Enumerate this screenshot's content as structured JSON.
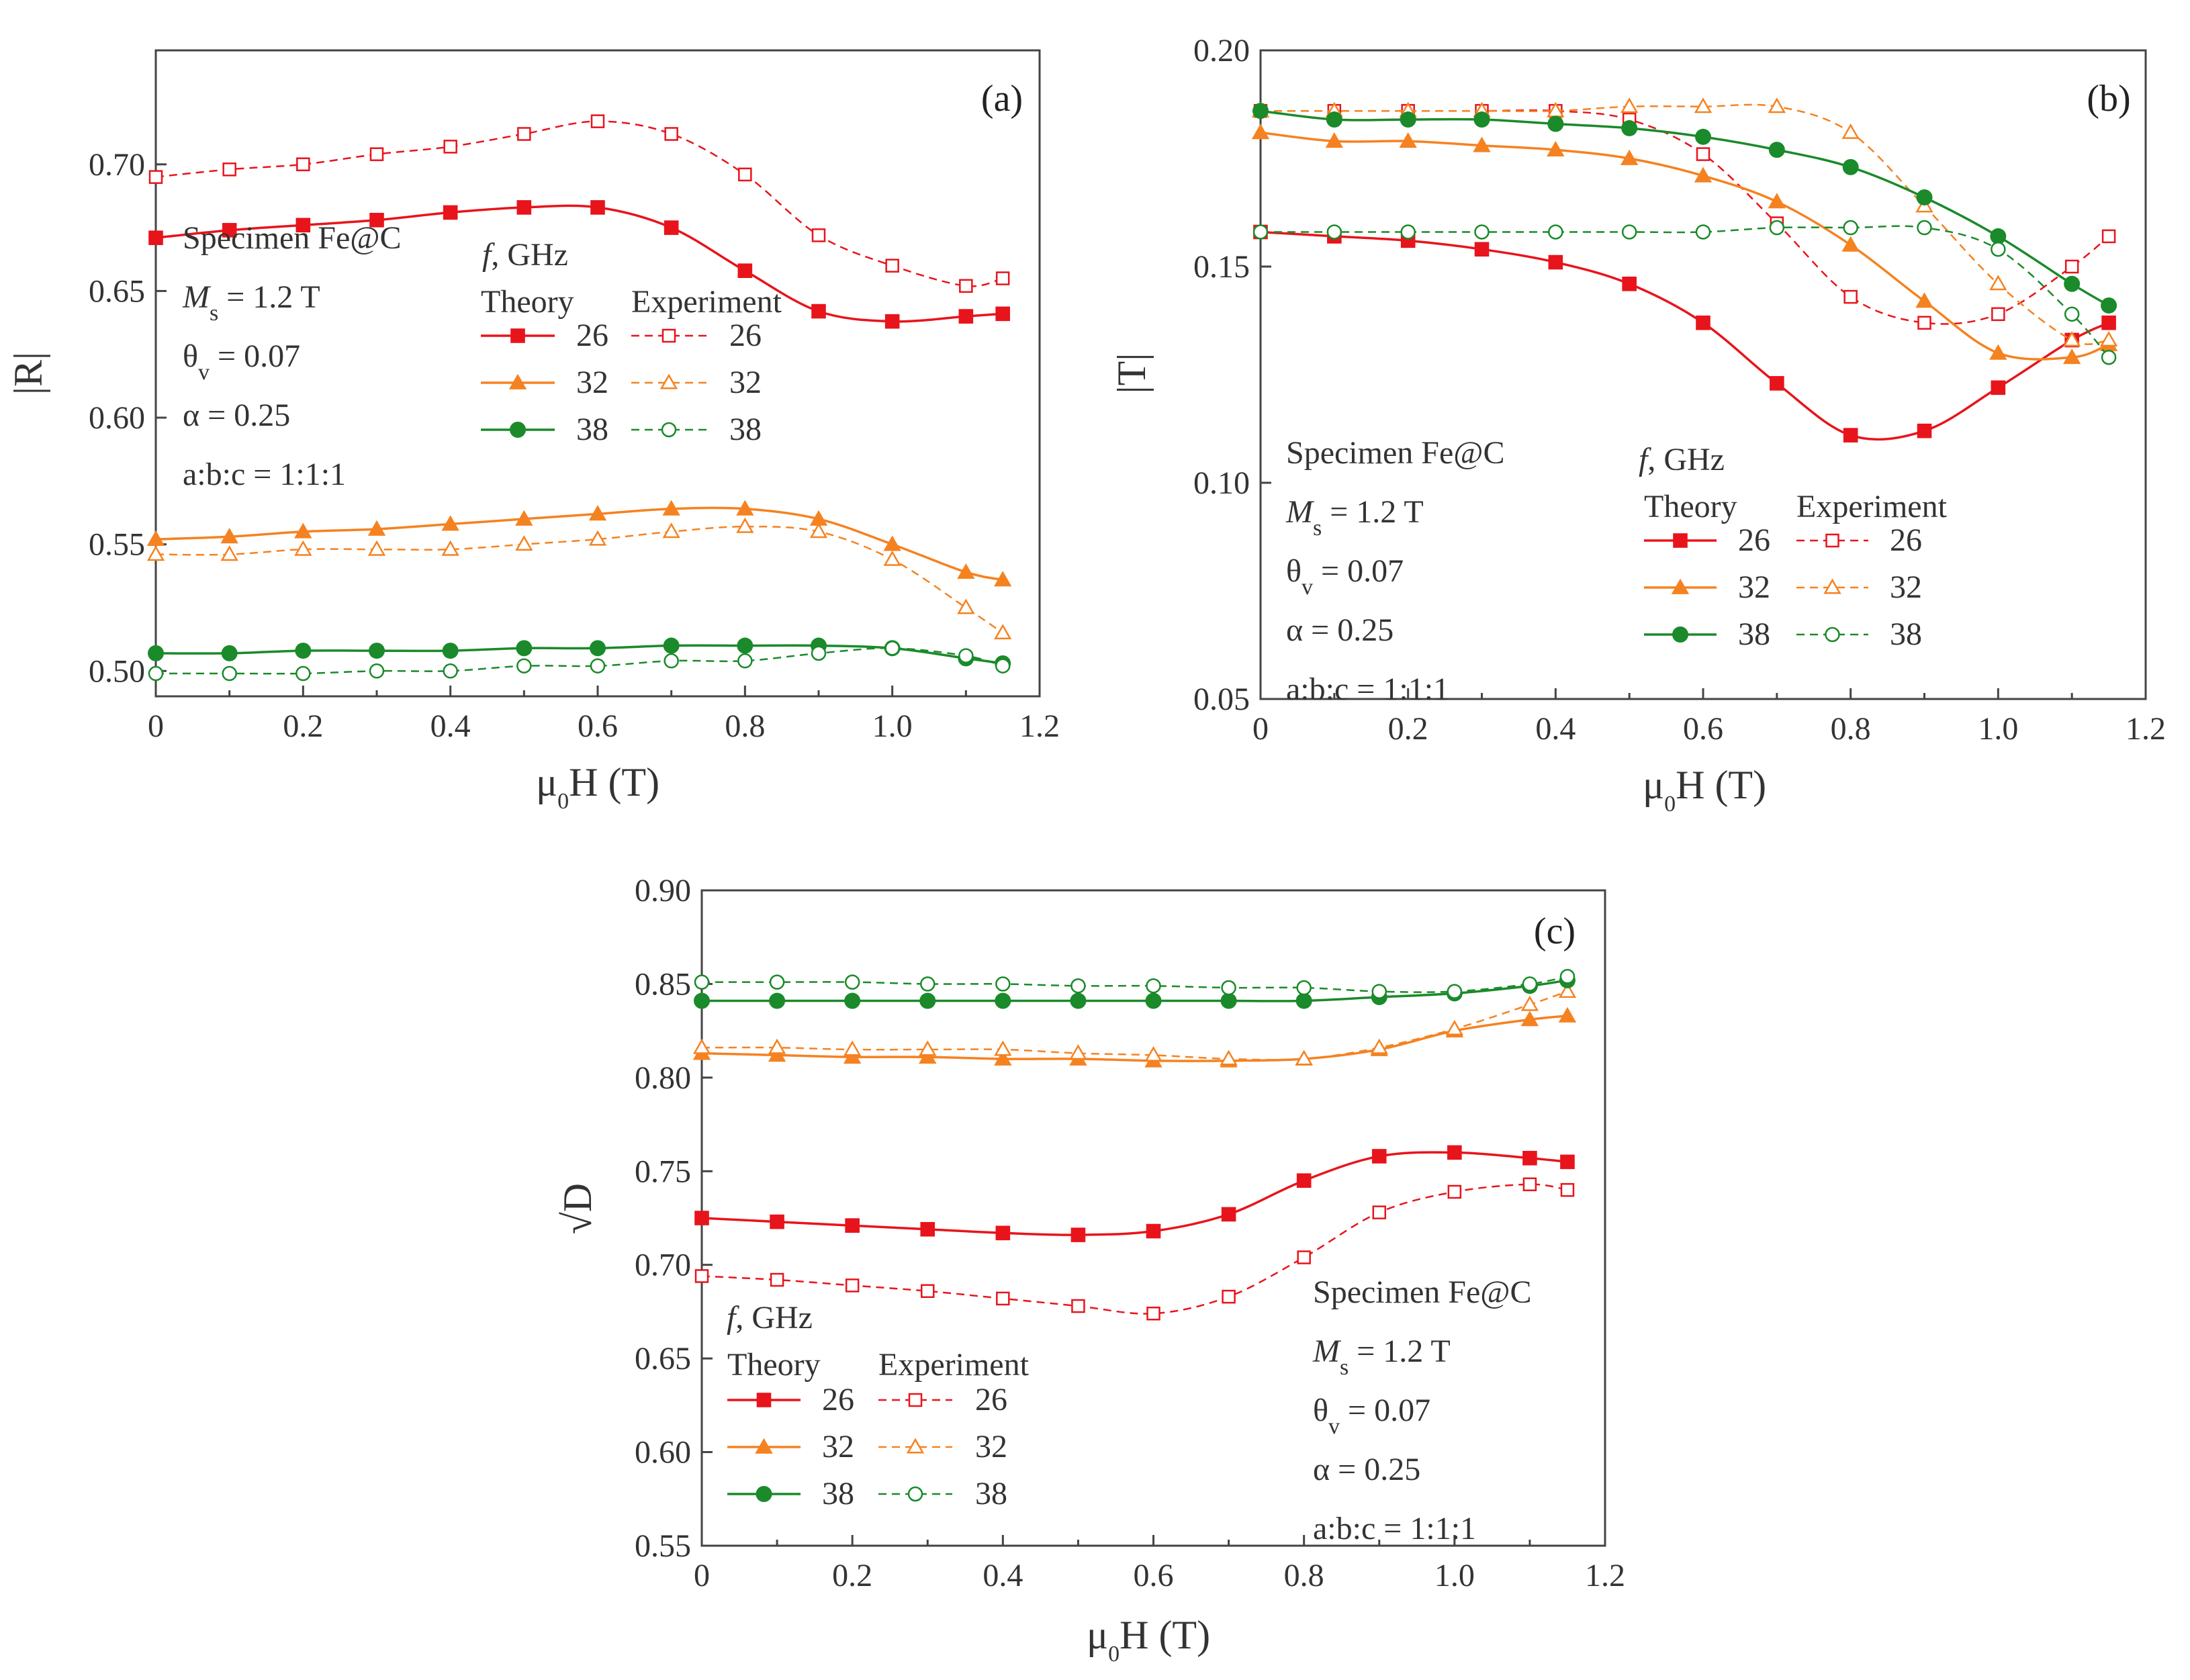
{
  "colors": {
    "red": "#e8141b",
    "orange": "#f58220",
    "green": "#1a8a2a"
  },
  "legend": {
    "title": "f, GHz",
    "theory_label": "Theory",
    "experiment_label": "Experiment",
    "entries": [
      "26",
      "32",
      "38"
    ]
  },
  "specimen_info": {
    "line1": "Specimen Fe@C",
    "line2_sym": "M",
    "line2_sub": "s",
    "line2_rest": " = 1.2 T",
    "line3_sym": "θ",
    "line3_sub": "v",
    "line3_rest": " = 0.07",
    "line4": "α = 0.25",
    "line5": "a:b:c = 1:1:1"
  },
  "chart_data": [
    {
      "id": "a",
      "type": "line",
      "panel_label": "(a)",
      "xlabel_main": "μ",
      "xlabel_sub": "0",
      "xlabel_rest": "H (T)",
      "ylabel": "|R|",
      "xlim": [
        0,
        1.2
      ],
      "ylim": [
        0.49,
        0.745
      ],
      "xticks": [
        "0",
        "0.2",
        "0.4",
        "0.6",
        "0.8",
        "1.0",
        "1.2"
      ],
      "xtick_values": [
        0,
        0.2,
        0.4,
        0.6,
        0.8,
        1.0,
        1.2
      ],
      "yticks": [
        "0.50",
        "0.55",
        "0.60",
        "0.65",
        "0.70"
      ],
      "ytick_values": [
        0.5,
        0.55,
        0.6,
        0.65,
        0.7
      ],
      "x": [
        0,
        0.1,
        0.2,
        0.3,
        0.4,
        0.5,
        0.6,
        0.7,
        0.8,
        0.9,
        1.0,
        1.1,
        1.15
      ],
      "series": [
        {
          "name": "26",
          "kind": "theory",
          "color": "red",
          "marker": "square",
          "values": [
            0.671,
            0.674,
            0.676,
            0.678,
            0.681,
            0.683,
            0.683,
            0.675,
            0.658,
            0.642,
            0.638,
            0.64,
            0.641
          ]
        },
        {
          "name": "26",
          "kind": "experiment",
          "color": "red",
          "marker": "square",
          "values": [
            0.695,
            0.698,
            0.7,
            0.704,
            0.707,
            0.712,
            0.717,
            0.712,
            0.696,
            0.672,
            0.66,
            0.652,
            0.655
          ]
        },
        {
          "name": "32",
          "kind": "theory",
          "color": "orange",
          "marker": "triangle",
          "values": [
            0.552,
            0.553,
            0.555,
            0.556,
            0.558,
            0.56,
            0.562,
            0.564,
            0.564,
            0.56,
            0.55,
            0.539,
            0.536
          ]
        },
        {
          "name": "32",
          "kind": "experiment",
          "color": "orange",
          "marker": "triangle",
          "values": [
            0.546,
            0.546,
            0.548,
            0.548,
            0.548,
            0.55,
            0.552,
            0.555,
            0.557,
            0.555,
            0.544,
            0.525,
            0.515
          ]
        },
        {
          "name": "38",
          "kind": "theory",
          "color": "green",
          "marker": "circle",
          "values": [
            0.507,
            0.507,
            0.508,
            0.508,
            0.508,
            0.509,
            0.509,
            0.51,
            0.51,
            0.51,
            0.509,
            0.505,
            0.503
          ]
        },
        {
          "name": "38",
          "kind": "experiment",
          "color": "green",
          "marker": "circle",
          "values": [
            0.499,
            0.499,
            0.499,
            0.5,
            0.5,
            0.502,
            0.502,
            0.504,
            0.504,
            0.507,
            0.509,
            0.506,
            0.502
          ]
        }
      ]
    },
    {
      "id": "b",
      "type": "line",
      "panel_label": "(b)",
      "xlabel_main": "μ",
      "xlabel_sub": "0",
      "xlabel_rest": "H (T)",
      "ylabel": "|T|",
      "xlim": [
        0,
        1.2
      ],
      "ylim": [
        0.05,
        0.2
      ],
      "xticks": [
        "0",
        "0.2",
        "0.4",
        "0.6",
        "0.8",
        "1.0",
        "1.2"
      ],
      "xtick_values": [
        0,
        0.2,
        0.4,
        0.6,
        0.8,
        1.0,
        1.2
      ],
      "yticks": [
        "0.05",
        "0.10",
        "0.15",
        "0.20"
      ],
      "ytick_values": [
        0.05,
        0.1,
        0.15,
        0.2
      ],
      "x": [
        0,
        0.1,
        0.2,
        0.3,
        0.4,
        0.5,
        0.6,
        0.7,
        0.8,
        0.9,
        1.0,
        1.1,
        1.15
      ],
      "series": [
        {
          "name": "26",
          "kind": "theory",
          "color": "red",
          "marker": "square",
          "values": [
            0.158,
            0.157,
            0.156,
            0.154,
            0.151,
            0.146,
            0.137,
            0.123,
            0.111,
            0.112,
            0.122,
            0.133,
            0.137
          ]
        },
        {
          "name": "26",
          "kind": "experiment",
          "color": "red",
          "marker": "square",
          "values": [
            0.186,
            0.186,
            0.186,
            0.186,
            0.186,
            0.184,
            0.176,
            0.16,
            0.143,
            0.137,
            0.139,
            0.15,
            0.157
          ]
        },
        {
          "name": "32",
          "kind": "theory",
          "color": "orange",
          "marker": "triangle",
          "values": [
            0.181,
            0.179,
            0.179,
            0.178,
            0.177,
            0.175,
            0.171,
            0.165,
            0.155,
            0.142,
            0.13,
            0.129,
            0.132
          ]
        },
        {
          "name": "32",
          "kind": "experiment",
          "color": "orange",
          "marker": "triangle",
          "values": [
            0.186,
            0.186,
            0.186,
            0.186,
            0.186,
            0.187,
            0.187,
            0.187,
            0.181,
            0.164,
            0.146,
            0.133,
            0.133
          ]
        },
        {
          "name": "38",
          "kind": "theory",
          "color": "green",
          "marker": "circle",
          "values": [
            0.186,
            0.184,
            0.184,
            0.184,
            0.183,
            0.182,
            0.18,
            0.177,
            0.173,
            0.166,
            0.157,
            0.146,
            0.141
          ]
        },
        {
          "name": "38",
          "kind": "experiment",
          "color": "green",
          "marker": "circle",
          "values": [
            0.158,
            0.158,
            0.158,
            0.158,
            0.158,
            0.158,
            0.158,
            0.159,
            0.159,
            0.159,
            0.154,
            0.139,
            0.129
          ]
        }
      ]
    },
    {
      "id": "c",
      "type": "line",
      "panel_label": "(c)",
      "xlabel_main": "μ",
      "xlabel_sub": "0",
      "xlabel_rest": "H (T)",
      "ylabel": "√D",
      "xlim": [
        0,
        1.2
      ],
      "ylim": [
        0.55,
        0.9
      ],
      "xticks": [
        "0",
        "0.2",
        "0.4",
        "0.6",
        "0.8",
        "1.0",
        "1.2"
      ],
      "xtick_values": [
        0,
        0.2,
        0.4,
        0.6,
        0.8,
        1.0,
        1.2
      ],
      "yticks": [
        "0.55",
        "0.60",
        "0.65",
        "0.70",
        "0.75",
        "0.80",
        "0.85",
        "0.90"
      ],
      "ytick_values": [
        0.55,
        0.6,
        0.65,
        0.7,
        0.75,
        0.8,
        0.85,
        0.9
      ],
      "x": [
        0,
        0.1,
        0.2,
        0.3,
        0.4,
        0.5,
        0.6,
        0.7,
        0.8,
        0.9,
        1.0,
        1.1,
        1.15
      ],
      "series": [
        {
          "name": "26",
          "kind": "theory",
          "color": "red",
          "marker": "square",
          "values": [
            0.725,
            0.723,
            0.721,
            0.719,
            0.717,
            0.716,
            0.718,
            0.727,
            0.745,
            0.758,
            0.76,
            0.757,
            0.755
          ]
        },
        {
          "name": "26",
          "kind": "experiment",
          "color": "red",
          "marker": "square",
          "values": [
            0.694,
            0.692,
            0.689,
            0.686,
            0.682,
            0.678,
            0.674,
            0.683,
            0.704,
            0.728,
            0.739,
            0.743,
            0.74
          ]
        },
        {
          "name": "32",
          "kind": "theory",
          "color": "orange",
          "marker": "triangle",
          "values": [
            0.813,
            0.812,
            0.811,
            0.811,
            0.81,
            0.81,
            0.809,
            0.809,
            0.81,
            0.815,
            0.825,
            0.831,
            0.833
          ]
        },
        {
          "name": "32",
          "kind": "experiment",
          "color": "orange",
          "marker": "triangle",
          "values": [
            0.816,
            0.816,
            0.815,
            0.815,
            0.815,
            0.813,
            0.812,
            0.81,
            0.81,
            0.816,
            0.826,
            0.839,
            0.846
          ]
        },
        {
          "name": "38",
          "kind": "theory",
          "color": "green",
          "marker": "circle",
          "values": [
            0.841,
            0.841,
            0.841,
            0.841,
            0.841,
            0.841,
            0.841,
            0.841,
            0.841,
            0.843,
            0.845,
            0.849,
            0.852
          ]
        },
        {
          "name": "38",
          "kind": "experiment",
          "color": "green",
          "marker": "circle",
          "values": [
            0.851,
            0.851,
            0.851,
            0.85,
            0.85,
            0.849,
            0.849,
            0.848,
            0.848,
            0.846,
            0.846,
            0.85,
            0.854
          ]
        }
      ]
    }
  ]
}
